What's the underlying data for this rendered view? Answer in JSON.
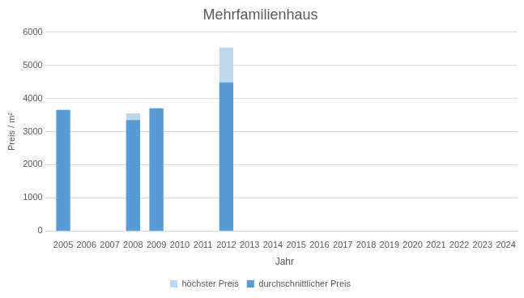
{
  "chart_data": {
    "type": "bar",
    "title": "Mehrfamilienhaus",
    "x_label": "Jahr",
    "y_label": "Preis / m²",
    "categories": [
      "2005",
      "2006",
      "2007",
      "2008",
      "2009",
      "2010",
      "2011",
      "2012",
      "2013",
      "2014",
      "2015",
      "2016",
      "2017",
      "2018",
      "2019",
      "2020",
      "2021",
      "2022",
      "2023",
      "2024"
    ],
    "series": [
      {
        "name": "höchster Preis",
        "color": "#bdd7ee",
        "values": [
          3650,
          null,
          null,
          3550,
          3700,
          null,
          null,
          5530,
          null,
          null,
          null,
          null,
          null,
          null,
          null,
          null,
          null,
          null,
          null,
          null
        ]
      },
      {
        "name": "durchschnittlicher Preis",
        "color": "#5b9bd5",
        "values": [
          3650,
          null,
          null,
          3350,
          3700,
          null,
          null,
          4480,
          null,
          null,
          null,
          null,
          null,
          null,
          null,
          null,
          null,
          null,
          null,
          null
        ]
      }
    ],
    "ylim": [
      0,
      6000
    ],
    "yticks": [
      0,
      1000,
      2000,
      3000,
      4000,
      5000,
      6000
    ],
    "grid": true,
    "legend": "bottom",
    "stacked": false
  }
}
